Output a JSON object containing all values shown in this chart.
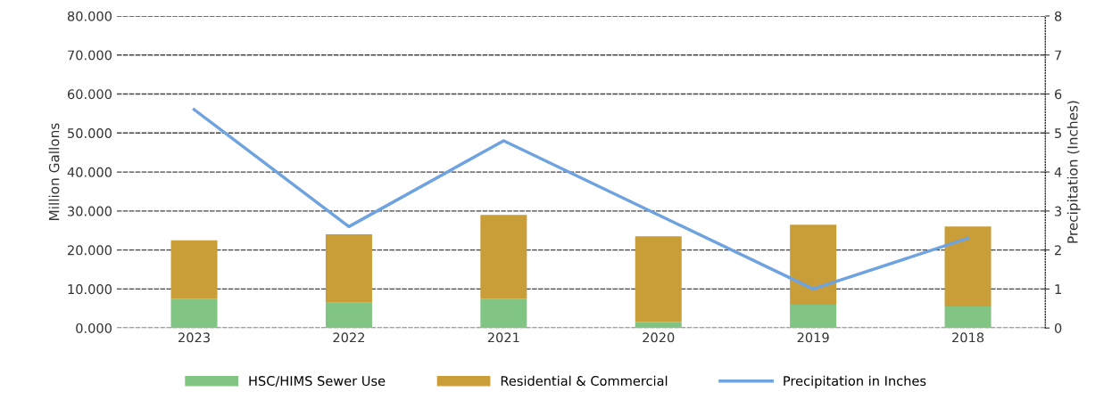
{
  "chart_data": {
    "type": "bar",
    "stacked": true,
    "categories": [
      "2023",
      "2022",
      "2021",
      "2020",
      "2019",
      "2018"
    ],
    "series": [
      {
        "name": "HSC/HIMS Sewer Use",
        "color": "#82c483",
        "values": [
          7.5,
          6.5,
          7.5,
          1.5,
          6.0,
          5.5
        ]
      },
      {
        "name": "Residential & Commercial",
        "color": "#c99d38",
        "values": [
          15.0,
          17.5,
          21.5,
          22.0,
          20.5,
          20.5
        ]
      },
      {
        "name": "Precipitation in Inches",
        "type": "line",
        "axis": "y2",
        "color": "#6fa3e0",
        "values": [
          5.6,
          2.6,
          4.8,
          2.9,
          1.0,
          2.3
        ]
      }
    ],
    "ylabel": "Million Gallons",
    "y2label": "Precipitation (Inches)",
    "ylim": [
      0,
      80
    ],
    "yticks": [
      {
        "value": 0,
        "label": "0.000"
      },
      {
        "value": 10,
        "label": "10.000"
      },
      {
        "value": 20,
        "label": "20.000"
      },
      {
        "value": 30,
        "label": "30.000"
      },
      {
        "value": 40,
        "label": "40.000"
      },
      {
        "value": 50,
        "label": "50.000"
      },
      {
        "value": 60,
        "label": "60.000"
      },
      {
        "value": 70,
        "label": "70.000"
      },
      {
        "value": 80,
        "label": "80.000"
      }
    ],
    "y2lim": [
      0,
      8
    ],
    "y2ticks": [
      0,
      1,
      2,
      3,
      4,
      5,
      6,
      7,
      8
    ],
    "grid": "y",
    "legend": "bottom",
    "marker": "none",
    "line_style": "solid"
  }
}
